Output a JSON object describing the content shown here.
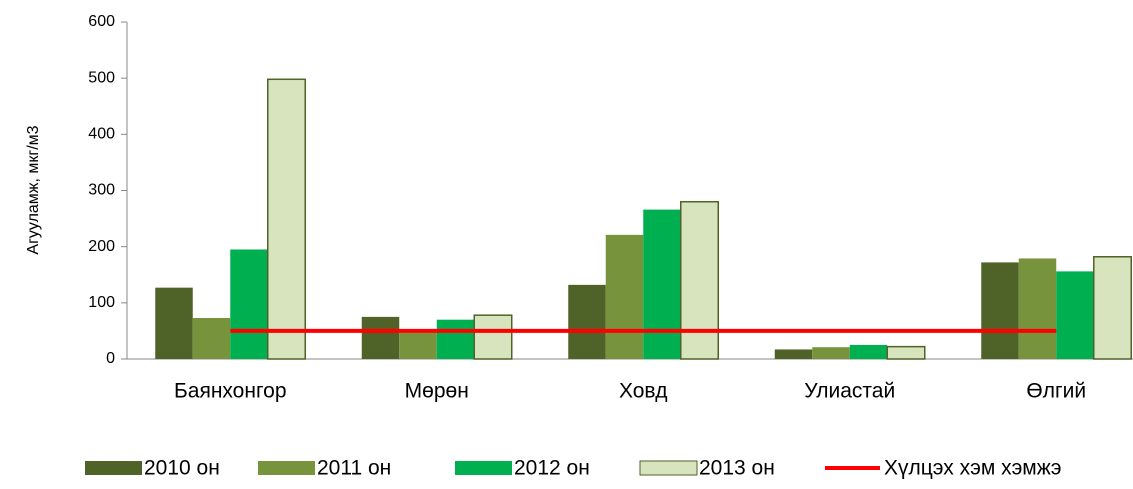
{
  "chart_data": {
    "type": "bar",
    "y_label": "Агууламж, мкг/м3",
    "categories": [
      "Баянхонгор",
      "Мөрөн",
      "Ховд",
      "Улиастай",
      "Өлгий"
    ],
    "series": [
      {
        "name": "2010 он",
        "color": "#4f6228",
        "values": [
          127,
          75,
          132,
          17,
          172
        ]
      },
      {
        "name": "2011 он",
        "color": "#77933c",
        "values": [
          73,
          47,
          221,
          21,
          179
        ]
      },
      {
        "name": "2012 он",
        "color": "#00b050",
        "values": [
          195,
          70,
          266,
          25,
          156
        ]
      },
      {
        "name": "2013 он",
        "color": "#d7e4bd",
        "values": [
          498,
          78,
          280,
          22,
          182
        ]
      },
      {
        "name": "Хүлцэх хэм хэмжэ",
        "type": "line",
        "color": "#ff0000",
        "values": [
          50,
          50,
          50,
          50,
          50
        ]
      }
    ],
    "ylim": [
      0,
      600
    ],
    "yticks": [
      0,
      100,
      200,
      300,
      400,
      500,
      600
    ]
  }
}
